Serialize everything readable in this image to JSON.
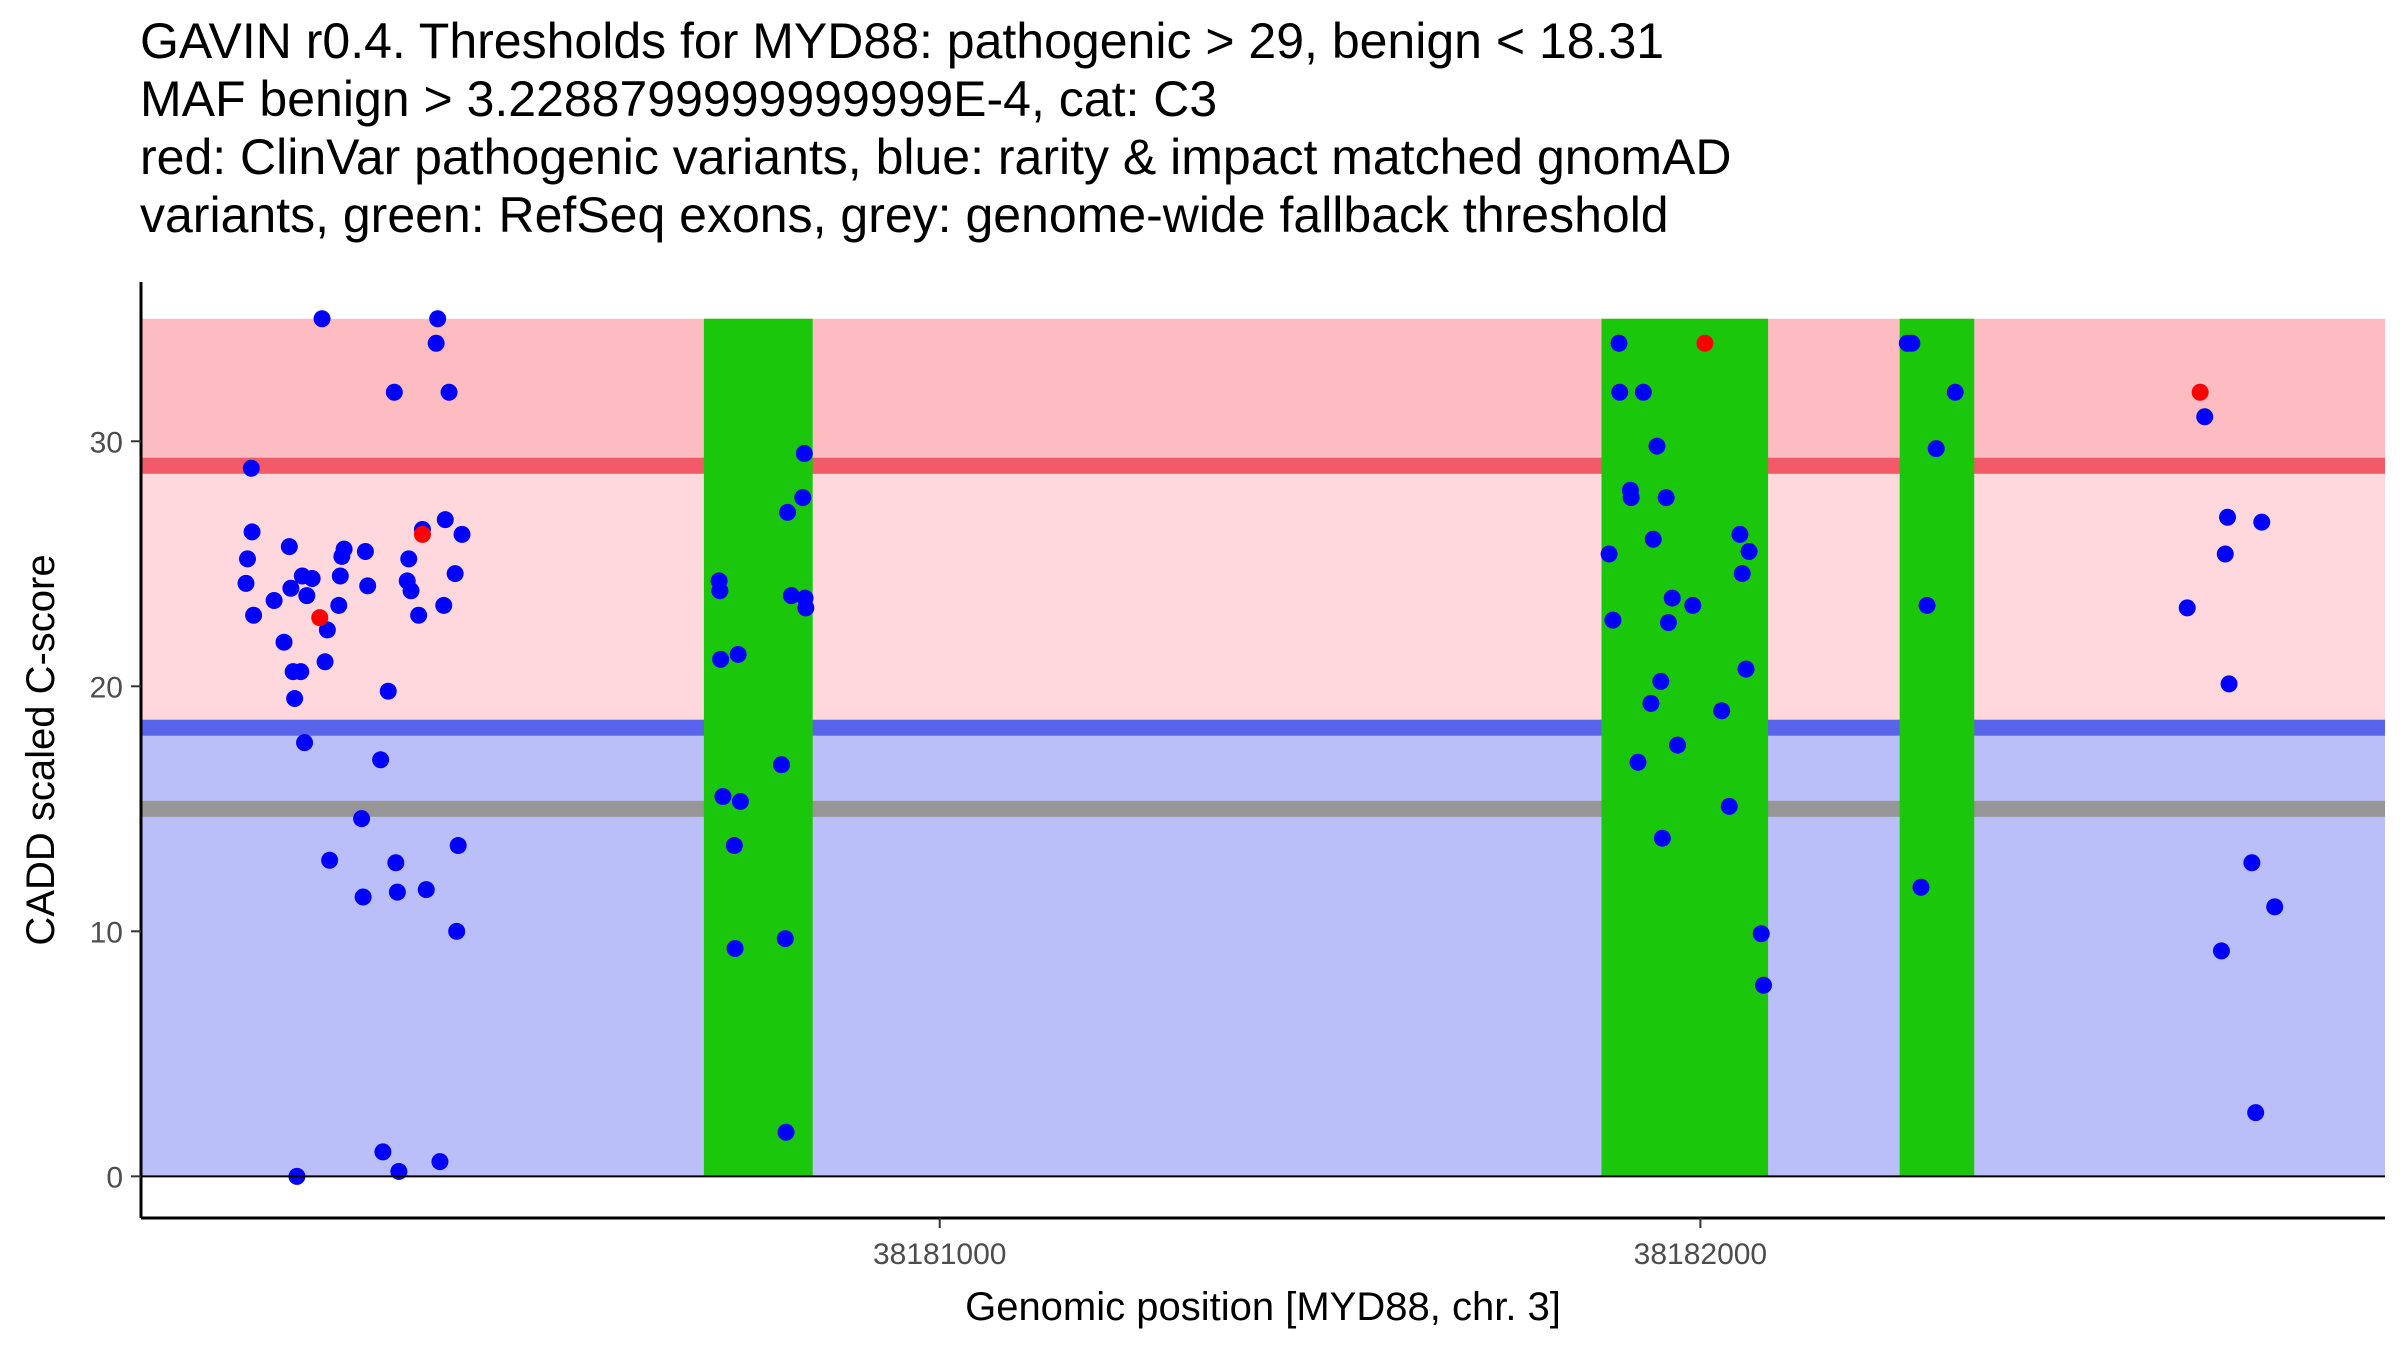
{
  "chart_data": {
    "type": "scatter",
    "title_lines": [
      "GAVIN r0.4. Thresholds for MYD88: pathogenic > 29, benign < 18.31",
      "MAF benign > 3.2288799999999999E-4, cat: C3",
      "red: ClinVar pathogenic variants, blue: rarity & impact matched gnomAD",
      "variants, green: RefSeq exons, grey: genome-wide fallback threshold"
    ],
    "xlabel": "Genomic position [MYD88, chr. 3]",
    "ylabel": "CADD scaled C-score",
    "xlim": [
      38179950,
      38182900
    ],
    "ylim": [
      -1.7,
      36.5
    ],
    "x_ticks": [
      38181000,
      38182000
    ],
    "y_ticks": [
      0,
      10,
      20,
      30
    ],
    "thresholds": {
      "pathogenic": 29,
      "benign": 18.31,
      "fallback": 15
    },
    "bands": [
      {
        "name": "pathogenic-region",
        "ymin": 29,
        "ymax": 35,
        "color": "#fcbcc2"
      },
      {
        "name": "uncertain-region",
        "ymin": 18.31,
        "ymax": 29,
        "color": "#fed8dc"
      },
      {
        "name": "benign-region",
        "ymin": 0,
        "ymax": 18.31,
        "color": "#babffa"
      }
    ],
    "exons": [
      {
        "start": 38180690,
        "end": 38180833
      },
      {
        "start": 38181870,
        "end": 38182089
      },
      {
        "start": 38182262,
        "end": 38182360
      }
    ],
    "colors": {
      "pathogenic_line": "#f55968",
      "benign_line": "#5865ea",
      "fallback_line": "#969696",
      "exon": "#1ac70a",
      "gnomad": "#0000ff",
      "clinvar": "#ff0000"
    },
    "series": [
      {
        "name": "ClinVar pathogenic variants",
        "color": "#ff0000",
        "points": [
          {
            "x": 38180185,
            "y": 22.8
          },
          {
            "x": 38180320,
            "y": 26.2
          },
          {
            "x": 38182006,
            "y": 34.0
          },
          {
            "x": 38182657,
            "y": 32.0
          }
        ]
      },
      {
        "name": "rarity & impact matched gnomAD variants",
        "color": "#0000ff",
        "points": [
          {
            "x": 38180088,
            "y": 24.2
          },
          {
            "x": 38180090,
            "y": 25.2
          },
          {
            "x": 38180095,
            "y": 28.9
          },
          {
            "x": 38180096,
            "y": 26.3
          },
          {
            "x": 38180098,
            "y": 22.9
          },
          {
            "x": 38180125,
            "y": 23.5
          },
          {
            "x": 38180138,
            "y": 21.8
          },
          {
            "x": 38180145,
            "y": 25.7
          },
          {
            "x": 38180147,
            "y": 24.0
          },
          {
            "x": 38180150,
            "y": 20.6
          },
          {
            "x": 38180152,
            "y": 19.5
          },
          {
            "x": 38180155,
            "y": 0.0
          },
          {
            "x": 38180160,
            "y": 20.6
          },
          {
            "x": 38180162,
            "y": 24.5
          },
          {
            "x": 38180165,
            "y": 17.7
          },
          {
            "x": 38180168,
            "y": 23.7
          },
          {
            "x": 38180175,
            "y": 24.4
          },
          {
            "x": 38180188,
            "y": 35.0
          },
          {
            "x": 38180192,
            "y": 21.0
          },
          {
            "x": 38180195,
            "y": 22.3
          },
          {
            "x": 38180198,
            "y": 12.9
          },
          {
            "x": 38180210,
            "y": 23.3
          },
          {
            "x": 38180212,
            "y": 24.5
          },
          {
            "x": 38180214,
            "y": 25.3
          },
          {
            "x": 38180217,
            "y": 25.6
          },
          {
            "x": 38180240,
            "y": 14.6
          },
          {
            "x": 38180242,
            "y": 11.4
          },
          {
            "x": 38180245,
            "y": 25.5
          },
          {
            "x": 38180248,
            "y": 24.1
          },
          {
            "x": 38180265,
            "y": 17.0
          },
          {
            "x": 38180268,
            "y": 1.0
          },
          {
            "x": 38180275,
            "y": 19.8
          },
          {
            "x": 38180283,
            "y": 32.0
          },
          {
            "x": 38180285,
            "y": 12.8
          },
          {
            "x": 38180287,
            "y": 11.6
          },
          {
            "x": 38180289,
            "y": 0.2
          },
          {
            "x": 38180300,
            "y": 24.3
          },
          {
            "x": 38180302,
            "y": 25.2
          },
          {
            "x": 38180305,
            "y": 23.9
          },
          {
            "x": 38180315,
            "y": 22.9
          },
          {
            "x": 38180320,
            "y": 26.4
          },
          {
            "x": 38180325,
            "y": 11.7
          },
          {
            "x": 38180338,
            "y": 34.0
          },
          {
            "x": 38180340,
            "y": 35.0
          },
          {
            "x": 38180343,
            "y": 0.6
          },
          {
            "x": 38180348,
            "y": 23.3
          },
          {
            "x": 38180350,
            "y": 26.8
          },
          {
            "x": 38180355,
            "y": 32.0
          },
          {
            "x": 38180363,
            "y": 24.6
          },
          {
            "x": 38180365,
            "y": 10.0
          },
          {
            "x": 38180367,
            "y": 13.5
          },
          {
            "x": 38180372,
            "y": 26.2
          },
          {
            "x": 38180710,
            "y": 24.3
          },
          {
            "x": 38180711,
            "y": 23.9
          },
          {
            "x": 38180712,
            "y": 21.1
          },
          {
            "x": 38180715,
            "y": 15.5
          },
          {
            "x": 38180730,
            "y": 13.5
          },
          {
            "x": 38180731,
            "y": 9.3
          },
          {
            "x": 38180735,
            "y": 21.3
          },
          {
            "x": 38180738,
            "y": 15.3
          },
          {
            "x": 38180792,
            "y": 16.8
          },
          {
            "x": 38180797,
            "y": 9.7
          },
          {
            "x": 38180798,
            "y": 1.8
          },
          {
            "x": 38180800,
            "y": 27.1
          },
          {
            "x": 38180805,
            "y": 23.7
          },
          {
            "x": 38180820,
            "y": 27.7
          },
          {
            "x": 38180822,
            "y": 29.5
          },
          {
            "x": 38180823,
            "y": 23.6
          },
          {
            "x": 38180824,
            "y": 23.2
          },
          {
            "x": 38181880,
            "y": 25.4
          },
          {
            "x": 38181885,
            "y": 22.7
          },
          {
            "x": 38181893,
            "y": 34.0
          },
          {
            "x": 38181894,
            "y": 32.0
          },
          {
            "x": 38181908,
            "y": 28.0
          },
          {
            "x": 38181909,
            "y": 27.7
          },
          {
            "x": 38181918,
            "y": 16.9
          },
          {
            "x": 38181925,
            "y": 32.0
          },
          {
            "x": 38181935,
            "y": 19.3
          },
          {
            "x": 38181938,
            "y": 26.0
          },
          {
            "x": 38181943,
            "y": 29.8
          },
          {
            "x": 38181948,
            "y": 20.2
          },
          {
            "x": 38181950,
            "y": 13.8
          },
          {
            "x": 38181955,
            "y": 27.7
          },
          {
            "x": 38181958,
            "y": 22.6
          },
          {
            "x": 38181963,
            "y": 23.6
          },
          {
            "x": 38181970,
            "y": 17.6
          },
          {
            "x": 38181990,
            "y": 23.3
          },
          {
            "x": 38182028,
            "y": 19.0
          },
          {
            "x": 38182038,
            "y": 15.1
          },
          {
            "x": 38182052,
            "y": 26.2
          },
          {
            "x": 38182055,
            "y": 24.6
          },
          {
            "x": 38182060,
            "y": 20.7
          },
          {
            "x": 38182064,
            "y": 25.5
          },
          {
            "x": 38182080,
            "y": 9.9
          },
          {
            "x": 38182083,
            "y": 7.8
          },
          {
            "x": 38182272,
            "y": 34.0
          },
          {
            "x": 38182278,
            "y": 34.0
          },
          {
            "x": 38182290,
            "y": 11.8
          },
          {
            "x": 38182298,
            "y": 23.3
          },
          {
            "x": 38182310,
            "y": 29.7
          },
          {
            "x": 38182335,
            "y": 32.0
          },
          {
            "x": 38182640,
            "y": 23.2
          },
          {
            "x": 38182663,
            "y": 31.0
          },
          {
            "x": 38182685,
            "y": 9.2
          },
          {
            "x": 38182690,
            "y": 25.4
          },
          {
            "x": 38182693,
            "y": 26.9
          },
          {
            "x": 38182695,
            "y": 20.1
          },
          {
            "x": 38182725,
            "y": 12.8
          },
          {
            "x": 38182730,
            "y": 2.6
          },
          {
            "x": 38182738,
            "y": 26.7
          },
          {
            "x": 38182755,
            "y": 11.0
          }
        ]
      }
    ]
  }
}
